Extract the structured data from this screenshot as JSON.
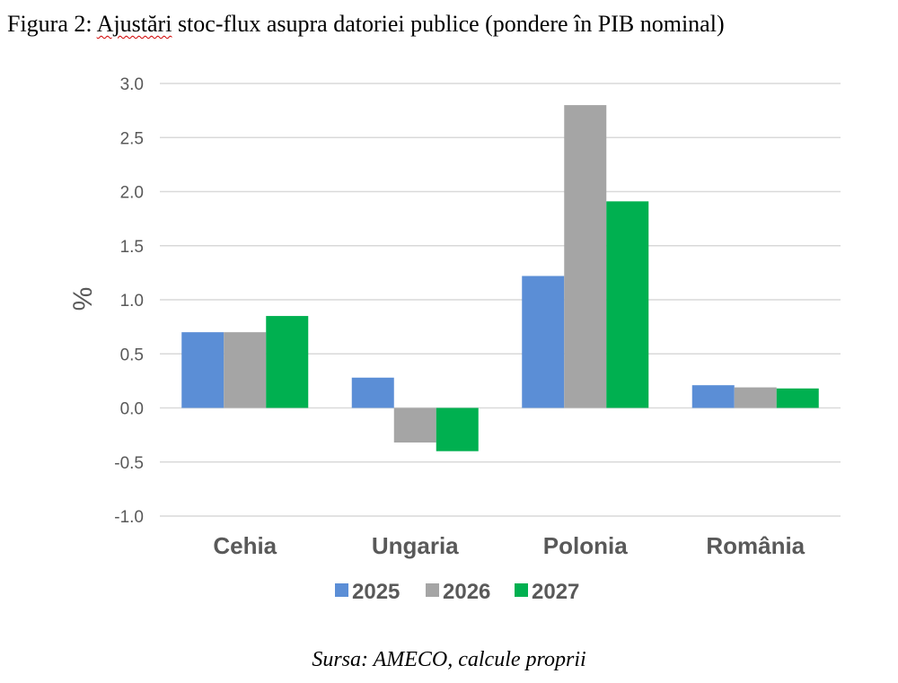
{
  "title_prefix": "Figura 2: ",
  "title_spell": "Ajustări",
  "title_rest": " stoc-flux asupra datoriei publice (pondere în PIB nominal)",
  "source": "Sursa: AMECO, calcule proprii",
  "chart_data": {
    "type": "bar",
    "title": "",
    "xlabel": "",
    "ylabel": "%",
    "ylim": [
      -1.0,
      3.0
    ],
    "yticks": [
      3.0,
      2.5,
      2.0,
      1.5,
      1.0,
      0.5,
      0.0,
      -0.5,
      -1.0
    ],
    "ytick_labels": [
      "3.0",
      "2.5",
      "2.0",
      "1.5",
      "1.0",
      "0.5",
      "0.0",
      "-0.5",
      "-1.0"
    ],
    "grid": true,
    "legend_position": "bottom",
    "categories": [
      "Cehia",
      "Ungaria",
      "Polonia",
      "România"
    ],
    "series": [
      {
        "name": "2025",
        "color": "#5b8ed6",
        "values": [
          0.7,
          0.28,
          1.22,
          0.21
        ]
      },
      {
        "name": "2026",
        "color": "#a5a5a5",
        "values": [
          0.7,
          -0.32,
          2.8,
          0.19
        ]
      },
      {
        "name": "2027",
        "color": "#00b050",
        "values": [
          0.85,
          -0.4,
          1.91,
          0.18
        ]
      }
    ]
  }
}
